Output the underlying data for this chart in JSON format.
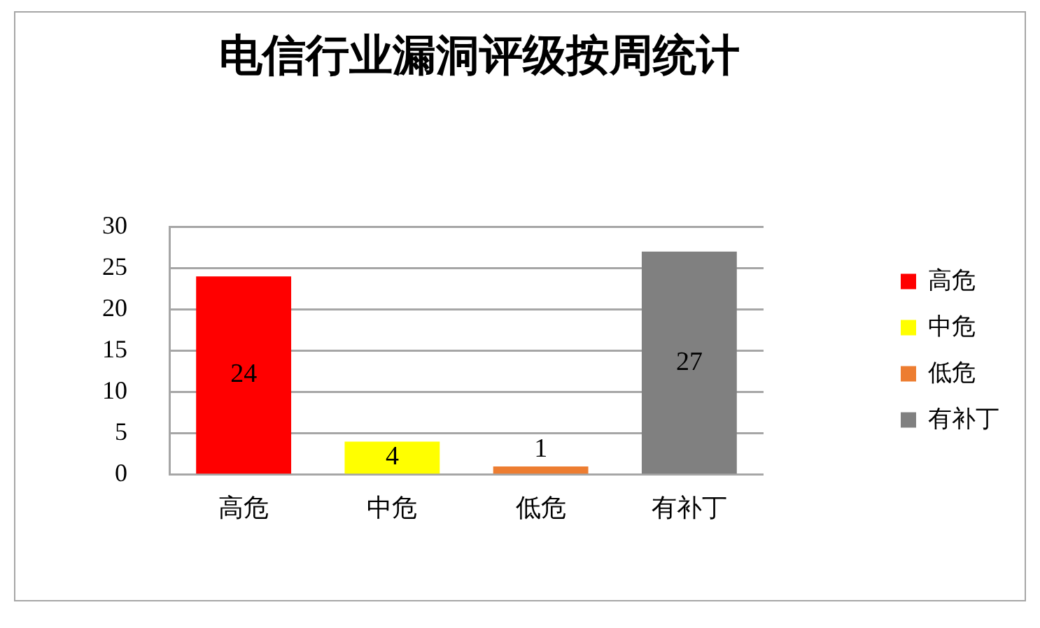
{
  "chart_data": {
    "type": "bar",
    "title": "电信行业漏洞评级按周统计",
    "categories": [
      "高危",
      "中危",
      "低危",
      "有补丁"
    ],
    "series": [
      {
        "name": "高危",
        "color": "#ff0000",
        "values": [
          24,
          null,
          null,
          null
        ]
      },
      {
        "name": "中危",
        "color": "#ffff00",
        "values": [
          null,
          4,
          null,
          null
        ]
      },
      {
        "name": "低危",
        "color": "#ed7d31",
        "values": [
          null,
          null,
          1,
          null
        ]
      },
      {
        "name": "有补丁",
        "color": "#808080",
        "values": [
          null,
          null,
          null,
          27
        ]
      }
    ],
    "ylim": [
      0,
      30
    ],
    "yticks": [
      0,
      5,
      10,
      15,
      20,
      25,
      30
    ],
    "grid": "y",
    "legend": "right",
    "data_labels": true
  }
}
